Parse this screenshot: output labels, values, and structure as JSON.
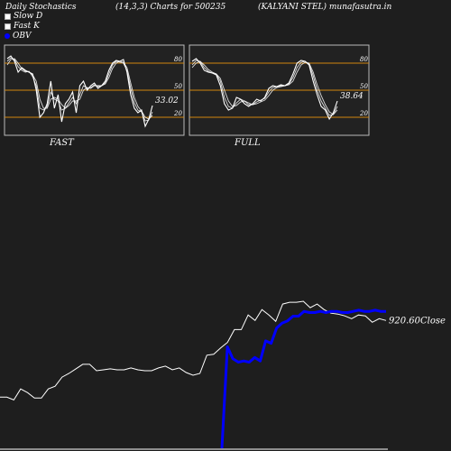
{
  "header": {
    "title": "Daily Stochastics",
    "params": "(14,3,3) Charts for 500235",
    "company": "(KALYANI STEL) munafasutra.in"
  },
  "legend": {
    "slow_d": "Slow  D",
    "fast_k": "Fast K",
    "obv": "OBV"
  },
  "colors": {
    "background": "#1e1e1e",
    "panel_background": "#222222",
    "level_line": "#d2870f",
    "line": "#ffffff",
    "obv": "#0000ff"
  },
  "chart_data": [
    {
      "type": "line",
      "panel": "fast",
      "label": "FAST",
      "ylim": [
        0,
        100
      ],
      "levels": [
        80,
        50,
        20
      ],
      "tick_labels": [
        "80",
        "50",
        "20"
      ],
      "value_label": "33.02",
      "series": [
        {
          "values": [
            85,
            88,
            82,
            70,
            75,
            72,
            70,
            68,
            50,
            20,
            25,
            35,
            60,
            30,
            45,
            15,
            35,
            40,
            48,
            25,
            55,
            60,
            50,
            55,
            58,
            52,
            55,
            60,
            72,
            80,
            83,
            82,
            84,
            70,
            45,
            30,
            25,
            28,
            10,
            18,
            33
          ]
        },
        {
          "values": [
            82,
            86,
            84,
            76,
            72,
            70,
            71,
            65,
            55,
            30,
            28,
            32,
            48,
            40,
            38,
            28,
            30,
            36,
            42,
            35,
            45,
            55,
            52,
            53,
            56,
            54,
            55,
            58,
            68,
            78,
            82,
            81,
            80,
            72,
            52,
            36,
            28,
            26,
            16,
            17,
            26
          ]
        },
        {
          "values": [
            78,
            84,
            85,
            80,
            74,
            71,
            70,
            67,
            60,
            40,
            30,
            30,
            40,
            42,
            40,
            34,
            30,
            33,
            38,
            38,
            40,
            50,
            53,
            52,
            55,
            55,
            55,
            57,
            64,
            74,
            80,
            82,
            81,
            75,
            58,
            42,
            32,
            27,
            20,
            18,
            22
          ]
        }
      ]
    },
    {
      "type": "line",
      "panel": "full",
      "label": "FULL",
      "ylim": [
        0,
        100
      ],
      "levels": [
        80,
        50,
        20
      ],
      "tick_labels": [
        "80",
        "50",
        "20"
      ],
      "value_label": "38.64",
      "series": [
        {
          "values": [
            82,
            85,
            80,
            72,
            70,
            69,
            67,
            55,
            35,
            28,
            30,
            42,
            40,
            35,
            32,
            35,
            40,
            38,
            42,
            52,
            55,
            54,
            56,
            55,
            58,
            68,
            80,
            83,
            82,
            78,
            60,
            45,
            32,
            28,
            18,
            25,
            38
          ]
        },
        {
          "values": [
            78,
            83,
            82,
            75,
            71,
            69,
            68,
            60,
            42,
            32,
            30,
            36,
            40,
            38,
            34,
            34,
            37,
            39,
            41,
            48,
            53,
            54,
            55,
            55,
            57,
            64,
            75,
            81,
            82,
            79,
            66,
            50,
            38,
            30,
            22,
            23,
            32
          ]
        },
        {
          "values": [
            75,
            80,
            82,
            78,
            73,
            70,
            68,
            63,
            50,
            38,
            32,
            33,
            37,
            38,
            36,
            34,
            35,
            37,
            39,
            44,
            50,
            53,
            54,
            55,
            56,
            60,
            70,
            78,
            81,
            80,
            70,
            56,
            44,
            34,
            26,
            23,
            28
          ]
        }
      ]
    },
    {
      "type": "line",
      "panel": "price_obv",
      "close_label": "920.60Close",
      "series": [
        {
          "name": "Close",
          "values": [
            836,
            836,
            833,
            845,
            841,
            835,
            835,
            845,
            848,
            858,
            862,
            867,
            872,
            872,
            865,
            866,
            867,
            866,
            866,
            868,
            866,
            865,
            865,
            868,
            870,
            866,
            868,
            863,
            860,
            862,
            882,
            883,
            890,
            896,
            910,
            910,
            926,
            920,
            932,
            926,
            919,
            938,
            940,
            940,
            941,
            934,
            938,
            932,
            928,
            927,
            925,
            922,
            926,
            925,
            918,
            922,
            920
          ]
        },
        {
          "name": "OBV",
          "values": [
            0,
            86,
            76,
            73,
            74,
            73,
            77,
            74,
            91,
            89,
            102,
            106,
            108,
            112,
            112,
            116,
            115,
            115,
            116,
            115,
            116,
            116,
            115,
            115,
            116,
            117,
            116,
            116,
            117,
            116,
            116
          ]
        }
      ]
    }
  ]
}
